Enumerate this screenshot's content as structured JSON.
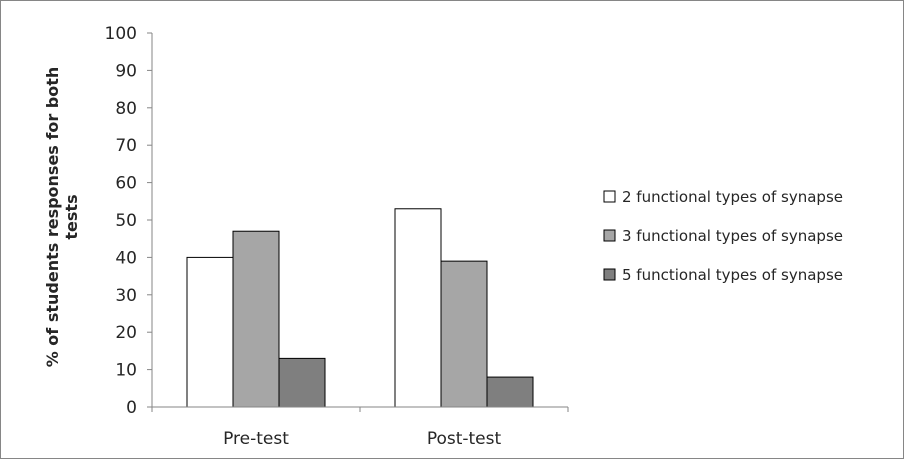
{
  "chart_data": {
    "type": "bar",
    "title": "",
    "xlabel": "",
    "ylabel": "% of students responses for both tests",
    "ylabel_lines": [
      "% of students responses for both",
      "tests"
    ],
    "ylim": [
      0,
      100
    ],
    "yticks": [
      "0",
      "10",
      "20",
      "30",
      "40",
      "50",
      "60",
      "70",
      "80",
      "90",
      "100"
    ],
    "grid": false,
    "legend_position": "right",
    "categories": [
      "Pre-test",
      "Post-test"
    ],
    "series": [
      {
        "name": "2 functional types of synapse",
        "values": [
          40,
          53
        ],
        "color": "#ffffff"
      },
      {
        "name": "3 functional types of synapse",
        "values": [
          47,
          39
        ],
        "color": "#a6a6a6"
      },
      {
        "name": "5 functional types of synapse",
        "values": [
          13,
          8
        ],
        "color": "#7f7f7f"
      }
    ]
  }
}
